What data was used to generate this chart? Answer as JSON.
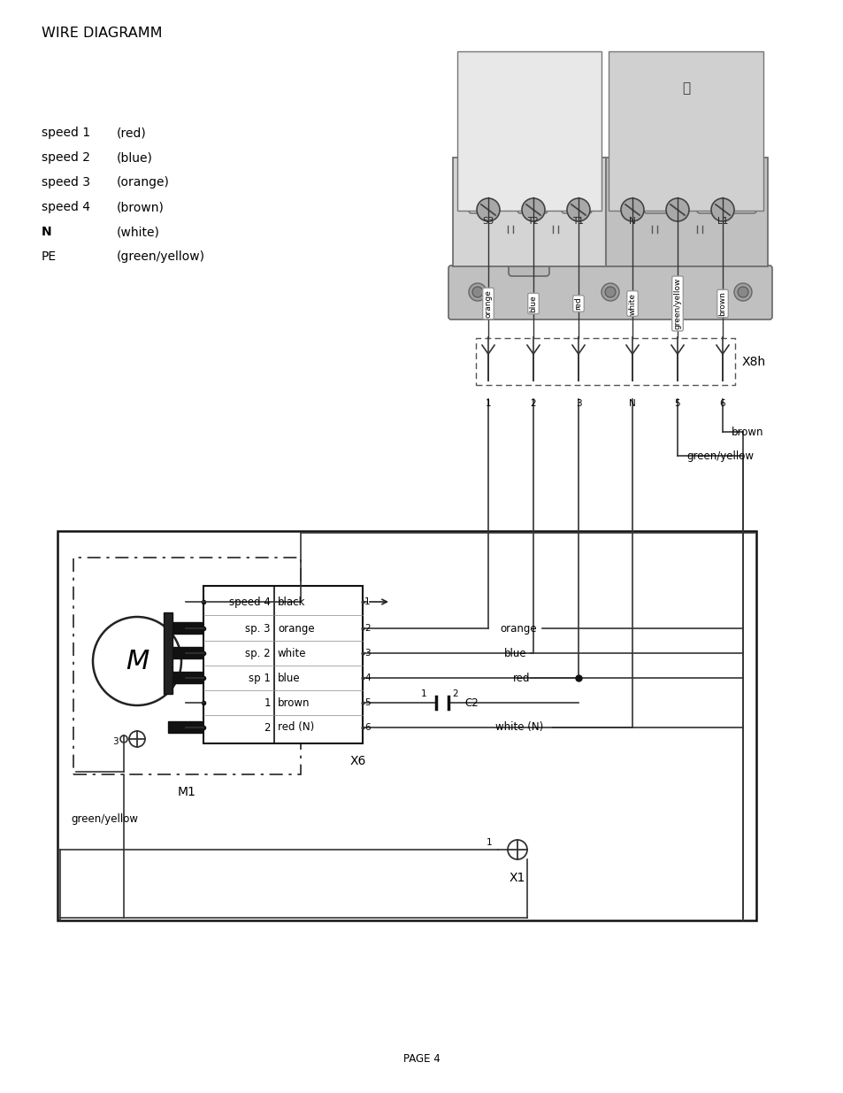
{
  "title": "WIRE DIAGRAMM",
  "page": "PAGE 4",
  "bg_color": "#ffffff",
  "legend": [
    [
      "speed 1",
      "(red)"
    ],
    [
      "speed 2",
      "(blue)"
    ],
    [
      "speed 3",
      "(orange)"
    ],
    [
      "speed 4",
      "(brown)"
    ],
    [
      "N",
      "(white)"
    ],
    [
      "PE",
      "(green/yellow)"
    ]
  ],
  "x8h_label": "X8h",
  "x8h_pins": [
    "1",
    "2",
    "3",
    "N",
    "5",
    "6"
  ],
  "x6_label": "X6",
  "x6_rows": [
    {
      "left": "speed 4",
      "right": "black",
      "pin": "1"
    },
    {
      "left": "sp. 3",
      "right": "orange",
      "pin": "2"
    },
    {
      "left": "sp. 2",
      "right": "white",
      "pin": "3"
    },
    {
      "left": "sp 1",
      "right": "blue",
      "pin": "4"
    },
    {
      "left": "1",
      "right": "brown",
      "pin": "5"
    },
    {
      "left": "2",
      "right": "red (N)",
      "pin": "6"
    }
  ],
  "brown_label": "brown",
  "green_yellow_label": "green/yellow",
  "m1_label": "M1",
  "x1_label": "X1",
  "c2_label": "C2",
  "green_yellow_bottom": "green/yellow",
  "screw_labels": [
    "S3",
    "T2",
    "T1",
    "N",
    "",
    "L1"
  ],
  "wire_labels": [
    "orange",
    "blue",
    "red",
    "white",
    "green/yellow",
    "brown"
  ]
}
